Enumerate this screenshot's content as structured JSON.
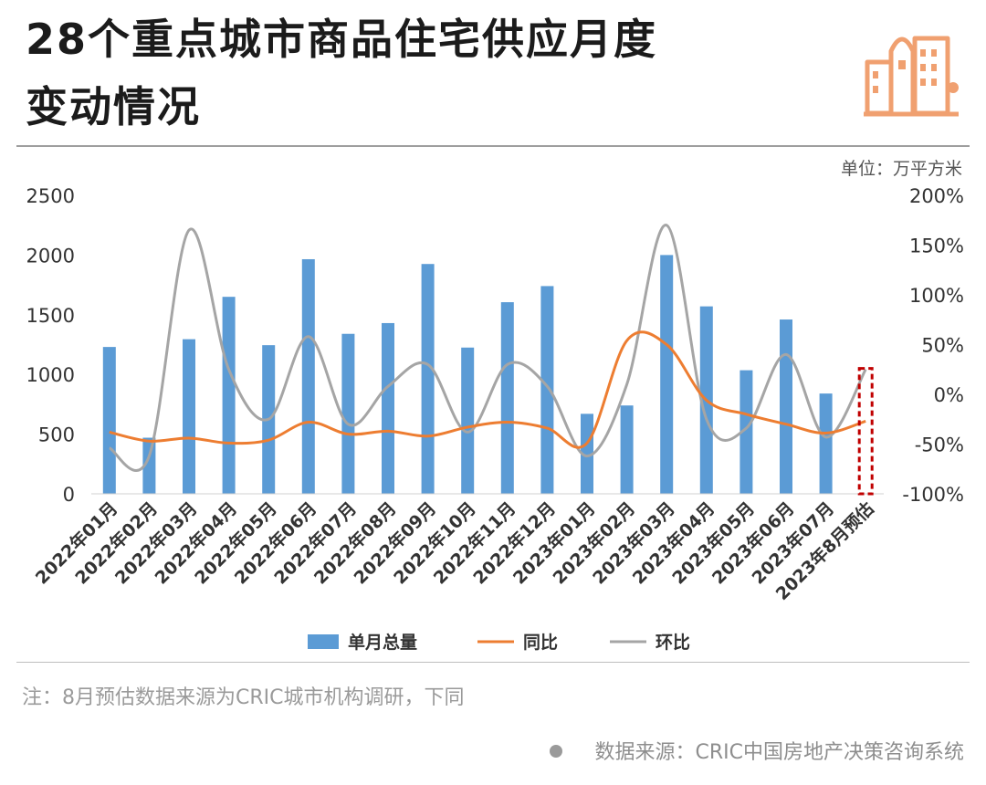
{
  "header": {
    "title_line1": "28个重点城市商品住宅供应月度",
    "title_line2": "变动情况",
    "unit": "单位：万平方米"
  },
  "colors": {
    "bar": "#5b9bd5",
    "yoy": "#ed7d31",
    "mom": "#a5a5a5",
    "estimate_box": "#c00000"
  },
  "icon": {
    "name": "buildings-icon",
    "color": "#f0a070"
  },
  "chart_data": {
    "type": "bar",
    "categories": [
      "2022年01月",
      "2022年02月",
      "2022年03月",
      "2022年04月",
      "2022年05月",
      "2022年06月",
      "2022年07月",
      "2022年08月",
      "2022年09月",
      "2022年10月",
      "2022年11月",
      "2022年12月",
      "2023年01月",
      "2023年02月",
      "2023年03月",
      "2023年04月",
      "2023年05月",
      "2023年06月",
      "2023年07月",
      "2023年8月预估"
    ],
    "series": [
      {
        "name": "单月总量",
        "type": "bar",
        "axis": "left",
        "values": [
          1230,
          470,
          1295,
          1650,
          1245,
          1965,
          1340,
          1430,
          1925,
          1225,
          1605,
          1740,
          670,
          740,
          2000,
          1570,
          1035,
          1460,
          840,
          1050
        ]
      },
      {
        "name": "同比",
        "type": "line",
        "axis": "right",
        "values": [
          -38,
          -47,
          -44,
          -49,
          -46,
          -28,
          -40,
          -37,
          -42,
          -33,
          -28,
          -34,
          -49,
          54,
          50,
          -6,
          -20,
          -30,
          -39,
          -27
        ]
      },
      {
        "name": "环比",
        "type": "line",
        "axis": "right",
        "values": [
          -54,
          -62,
          165,
          25,
          -25,
          58,
          -30,
          8,
          30,
          -38,
          30,
          8,
          -62,
          10,
          170,
          -25,
          -34,
          40,
          -43,
          25
        ]
      }
    ],
    "y_left": {
      "ylim": [
        0,
        2500
      ],
      "ticks": [
        "0",
        "500",
        "1000",
        "1500",
        "2000",
        "2500"
      ]
    },
    "y_right": {
      "ylim": [
        -100,
        200
      ],
      "ticks": [
        "-100%",
        "-50%",
        "0%",
        "50%",
        "100%",
        "150%",
        "200%"
      ]
    },
    "estimate_highlight": "2023年8月预估",
    "legend_position": "bottom",
    "grid": false
  },
  "footer": {
    "note": "注：8月预估数据来源为CRIC城市机构调研，下同",
    "source": "数据来源：CRIC中国房地产决策咨询系统"
  }
}
